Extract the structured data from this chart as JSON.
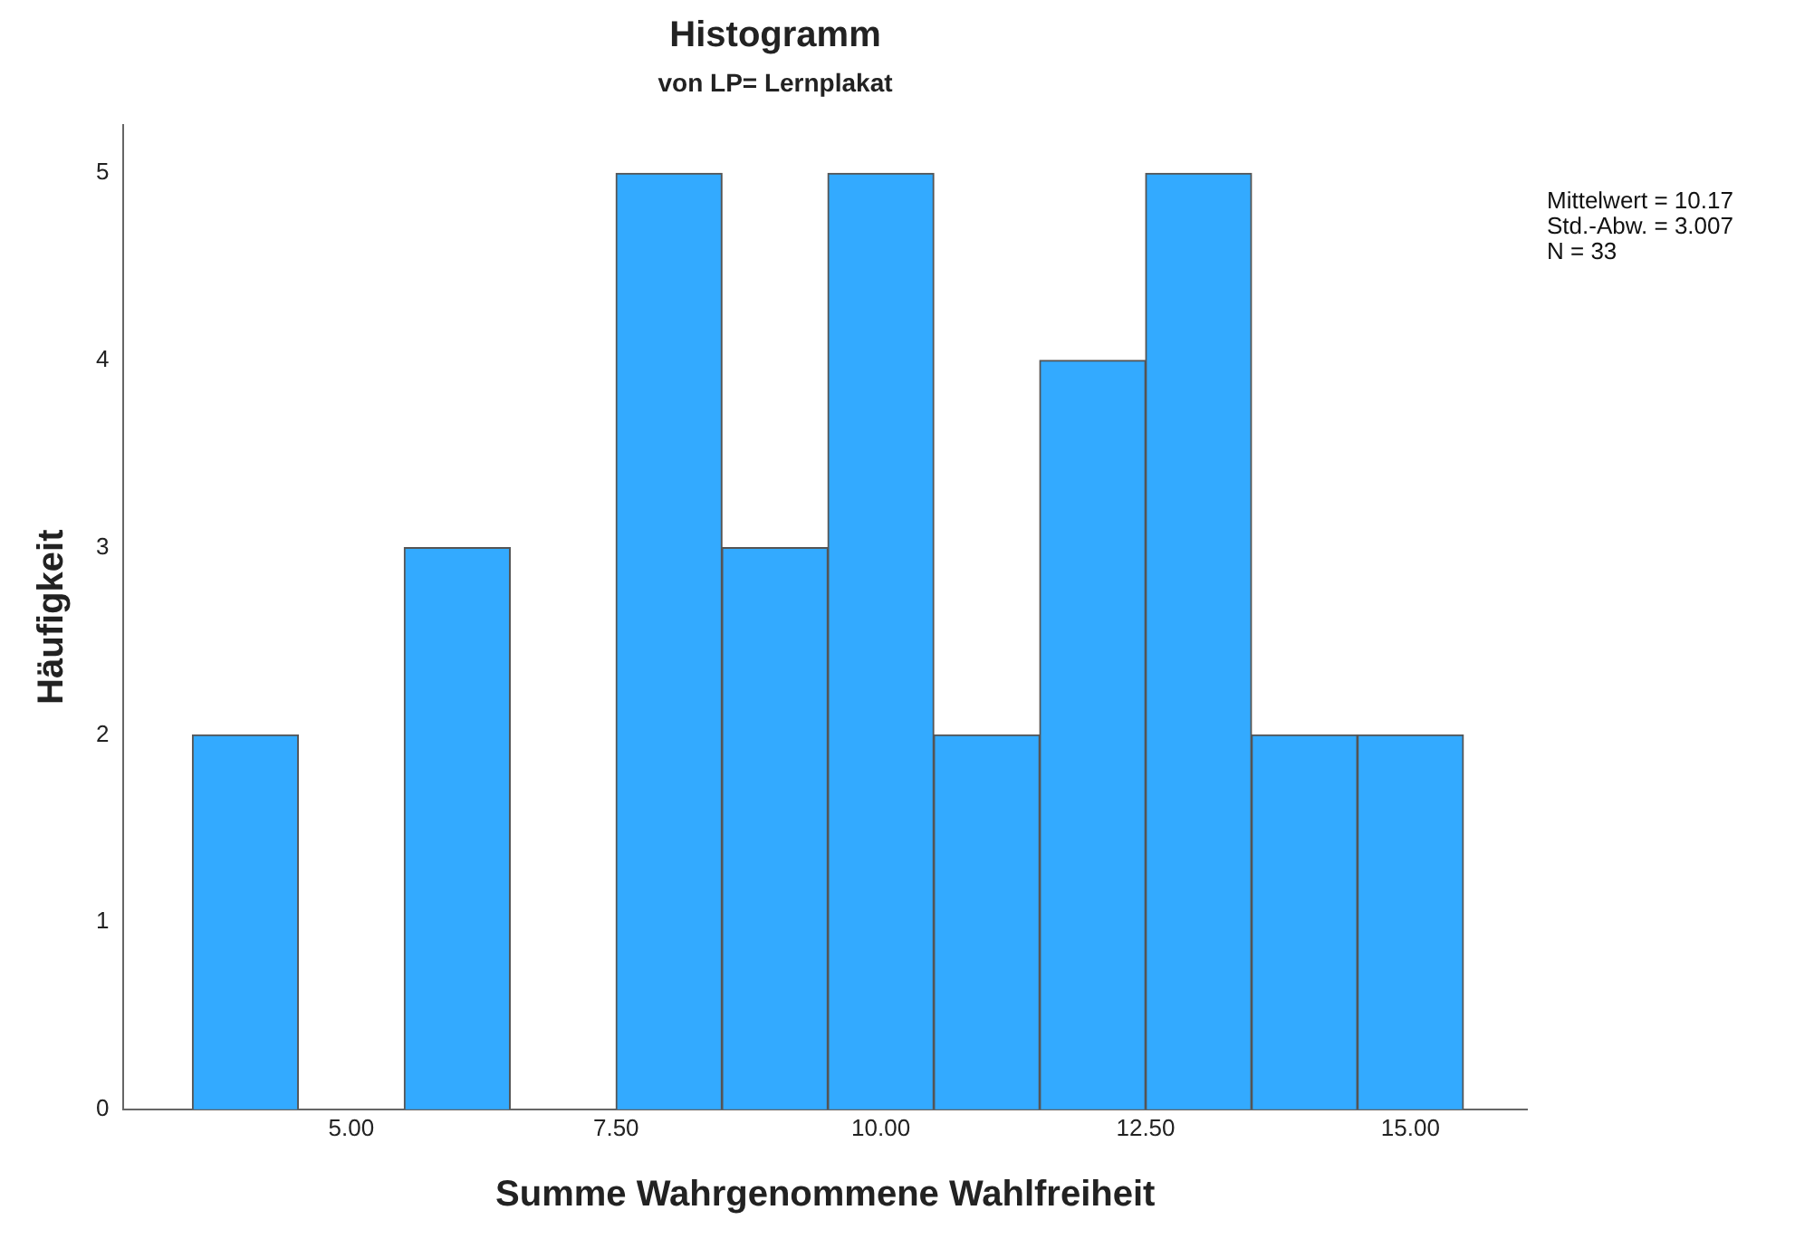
{
  "chart_data": {
    "type": "histogram",
    "title": "Histogramm",
    "subtitle": "von LP= Lernplakat",
    "xlabel": "Summe Wahrgenommene Wahlfreiheit",
    "ylabel": "Häufigkeit",
    "bins": [
      3.5,
      4.5,
      5.5,
      6.5,
      7.5,
      8.5,
      9.5,
      10.5,
      11.5,
      12.5,
      13.5,
      14.5,
      15.5
    ],
    "values": [
      2,
      0,
      3,
      0,
      5,
      3,
      5,
      2,
      4,
      5,
      2,
      2
    ],
    "color": "#33aaff",
    "xlim": [
      2.85,
      16.1
    ],
    "xticks": [
      {
        "value": 5,
        "label": "5.00"
      },
      {
        "value": 7.5,
        "label": "7.50"
      },
      {
        "value": 10,
        "label": "10.00"
      },
      {
        "value": 12.5,
        "label": "12.50"
      },
      {
        "value": 15,
        "label": "15.00"
      }
    ],
    "ylim": [
      0,
      5.26
    ],
    "yticks": [
      0,
      1,
      2,
      3,
      4,
      5
    ],
    "grid": false,
    "annotations": [
      "Mittelwert = 10.17",
      "Std.-Abw. = 3.007",
      "N = 33"
    ]
  }
}
